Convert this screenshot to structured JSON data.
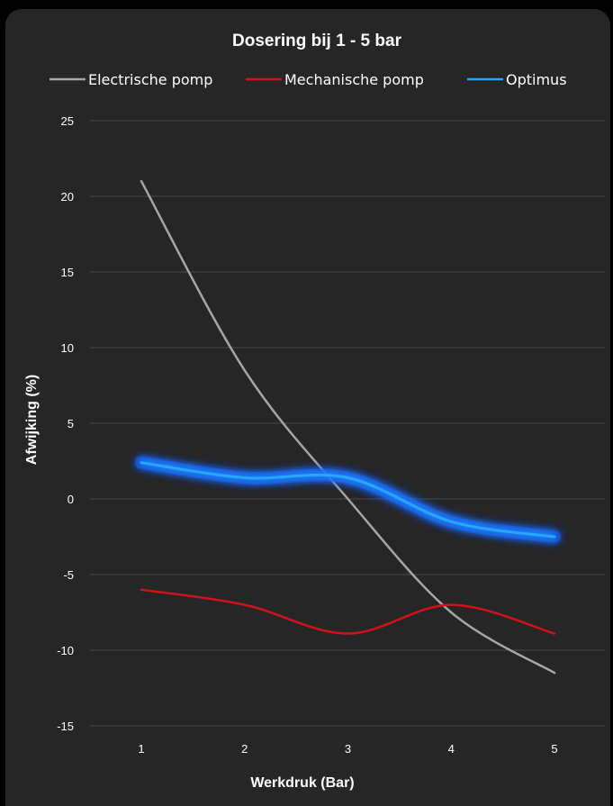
{
  "chart_data": {
    "type": "line",
    "title": "Dosering bij 1 - 5 bar",
    "xlabel": "Werkdruk (Bar)",
    "ylabel": "Afwijking (%)",
    "x": [
      1,
      2,
      3,
      4,
      5
    ],
    "x_tick_labels": [
      "1",
      "2",
      "3",
      "4",
      "5"
    ],
    "y_tick_labels": [
      "25",
      "20",
      "15",
      "10",
      "5",
      "0",
      "-5",
      "-10",
      "-15"
    ],
    "ylim": [
      -15,
      25
    ],
    "grid": "horizontal",
    "legend_position": "top",
    "background": "#262626",
    "series": [
      {
        "name": "Electrische pomp",
        "color": "#a6a6a6",
        "glow": false,
        "values": [
          21,
          8.5,
          0,
          -7.5,
          -11.5
        ]
      },
      {
        "name": "Mechanische pomp",
        "color": "#d0121b",
        "glow": false,
        "values": [
          -6,
          -7,
          -8.9,
          -7,
          -8.9
        ]
      },
      {
        "name": "Optimus",
        "color": "#22aaff",
        "glow": true,
        "values": [
          2.4,
          1.4,
          1.4,
          -1.5,
          -2.5
        ]
      }
    ]
  }
}
